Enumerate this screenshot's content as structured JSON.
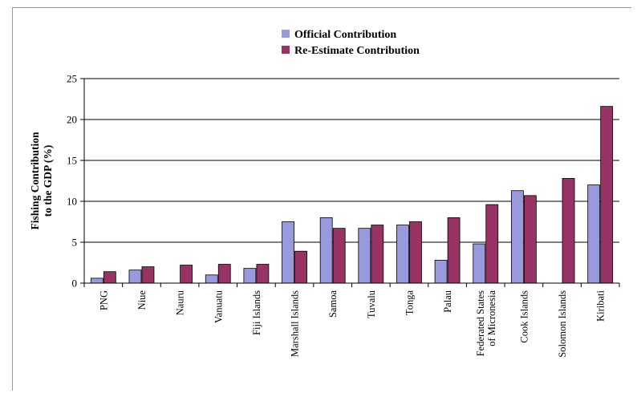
{
  "colors": {
    "official": "#9999dd",
    "reestimate": "#993366",
    "grid": "#000000"
  },
  "chart_data": {
    "type": "bar",
    "title": "",
    "xlabel": "",
    "ylabel": "Fishing Contribution to the GDP (%)",
    "ylabel_lines": [
      "Fishing Contribution",
      "to the GDP (%)"
    ],
    "ylim": [
      0,
      25
    ],
    "yticks": [
      0,
      5,
      10,
      15,
      20,
      25
    ],
    "grid": true,
    "legend_position": "top-center",
    "categories": [
      "PNG",
      "Niue",
      "Nauru",
      "Vanuatu",
      "Fiji Islands",
      "Marshall Islands",
      "Samoa",
      "Tuvalu",
      "Tonga",
      "Palau",
      "Federated States of Micronesia",
      "Cook Islands",
      "Solomon Islands",
      "Kiribati"
    ],
    "category_lines": [
      [
        "PNG"
      ],
      [
        "Niue"
      ],
      [
        "Nauru"
      ],
      [
        "Vanuatu"
      ],
      [
        "Fiji Islands"
      ],
      [
        "Marshall Islands"
      ],
      [
        "Samoa"
      ],
      [
        "Tuvalu"
      ],
      [
        "Tonga"
      ],
      [
        "Palau"
      ],
      [
        "Federated States",
        "of Micronesia"
      ],
      [
        "Cook Islands"
      ],
      [
        "Solomon Islands"
      ],
      [
        "Kiribati"
      ]
    ],
    "series": [
      {
        "name": "Official Contribution",
        "color_key": "official",
        "values": [
          0.6,
          1.6,
          0,
          1.0,
          1.8,
          7.5,
          8.0,
          6.7,
          7.1,
          2.8,
          4.8,
          11.3,
          0,
          12.0
        ]
      },
      {
        "name": "Re-Estimate Contribution",
        "color_key": "reestimate",
        "values": [
          1.4,
          2.0,
          2.2,
          2.3,
          2.3,
          3.9,
          6.7,
          7.1,
          7.5,
          8.0,
          9.6,
          10.7,
          12.8,
          21.6
        ]
      }
    ]
  }
}
